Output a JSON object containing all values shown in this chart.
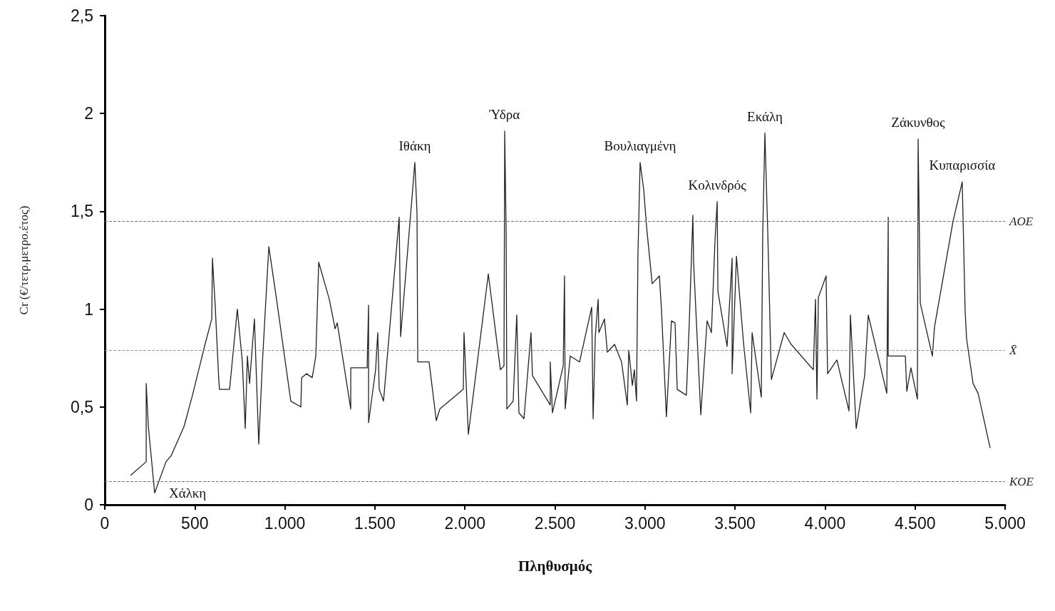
{
  "chart_data": {
    "type": "line",
    "xlabel": "Πληθυσμός",
    "ylabel": "Cr (€/τετρ.μετρο.έτος)",
    "x": [
      143,
      230,
      230,
      242,
      277,
      340,
      368,
      440,
      487,
      554,
      594,
      598,
      613,
      633,
      637,
      693,
      736,
      764,
      780,
      792,
      804,
      831,
      855,
      875,
      911,
      954,
      1033,
      1089,
      1093,
      1120,
      1152,
      1172,
      1188,
      1247,
      1279,
      1291,
      1366,
      1366,
      1457,
      1465,
      1465,
      1504,
      1516,
      1524,
      1548,
      1635,
      1643,
      1722,
      1734,
      1738,
      1801,
      1841,
      1861,
      1991,
      1995,
      2019,
      2130,
      2197,
      2217,
      2221,
      2229,
      2233,
      2268,
      2288,
      2300,
      2328,
      2367,
      2375,
      2474,
      2474,
      2486,
      2546,
      2553,
      2557,
      2585,
      2637,
      2704,
      2712,
      2724,
      2740,
      2744,
      2775,
      2791,
      2831,
      2870,
      2902,
      2910,
      2930,
      2941,
      2953,
      2961,
      2973,
      2993,
      3009,
      3040,
      3080,
      3092,
      3119,
      3147,
      3167,
      3179,
      3230,
      3246,
      3266,
      3270,
      3310,
      3345,
      3369,
      3389,
      3401,
      3405,
      3456,
      3484,
      3484,
      3508,
      3547,
      3587,
      3595,
      3646,
      3654,
      3666,
      3682,
      3702,
      3773,
      3812,
      3935,
      3947,
      3955,
      3963,
      4006,
      4014,
      4066,
      4133,
      4141,
      4173,
      4220,
      4240,
      4343,
      4351,
      4351,
      4446,
      4454,
      4477,
      4513,
      4517,
      4529,
      4596,
      4608,
      4711,
      4762,
      4778,
      4786,
      4822,
      4850,
      4917
    ],
    "series": [
      {
        "color": "#222222",
        "values": [
          0.15,
          0.22,
          0.62,
          0.4,
          0.06,
          0.22,
          0.25,
          0.4,
          0.56,
          0.81,
          0.95,
          1.26,
          1.02,
          0.64,
          0.59,
          0.59,
          1.0,
          0.73,
          0.39,
          0.76,
          0.62,
          0.95,
          0.31,
          0.72,
          1.32,
          1.05,
          0.53,
          0.5,
          0.65,
          0.67,
          0.65,
          0.76,
          1.24,
          1.05,
          0.9,
          0.93,
          0.49,
          0.7,
          0.7,
          1.02,
          0.42,
          0.69,
          0.88,
          0.59,
          0.53,
          1.47,
          0.86,
          1.75,
          1.49,
          0.73,
          0.73,
          0.43,
          0.49,
          0.59,
          0.88,
          0.36,
          1.18,
          0.69,
          0.71,
          1.91,
          1.39,
          0.49,
          0.53,
          0.97,
          0.47,
          0.44,
          0.88,
          0.66,
          0.51,
          0.73,
          0.47,
          0.71,
          1.17,
          0.49,
          0.76,
          0.73,
          1.01,
          0.44,
          0.86,
          1.05,
          0.88,
          0.95,
          0.78,
          0.82,
          0.73,
          0.51,
          0.79,
          0.61,
          0.69,
          0.53,
          1.28,
          1.75,
          1.61,
          1.42,
          1.13,
          1.17,
          0.99,
          0.45,
          0.94,
          0.93,
          0.59,
          0.56,
          0.93,
          1.48,
          1.24,
          0.46,
          0.94,
          0.88,
          1.35,
          1.55,
          1.09,
          0.81,
          1.26,
          0.67,
          1.27,
          0.83,
          0.47,
          0.88,
          0.55,
          1.39,
          1.9,
          1.39,
          0.64,
          0.88,
          0.82,
          0.69,
          1.05,
          0.54,
          1.06,
          1.17,
          0.67,
          0.74,
          0.48,
          0.97,
          0.39,
          0.66,
          0.97,
          0.57,
          1.47,
          0.76,
          0.76,
          0.58,
          0.7,
          0.54,
          1.87,
          1.03,
          0.76,
          0.91,
          1.45,
          1.65,
          0.99,
          0.85,
          0.62,
          0.57,
          0.29
        ]
      }
    ],
    "xlim": [
      0,
      5000
    ],
    "xticks": [
      0,
      500,
      {
        "value": 1000,
        "label": "1.000"
      },
      {
        "value": 1500,
        "label": "1.500"
      },
      {
        "value": 2000,
        "label": "2.000"
      },
      {
        "value": 2500,
        "label": "2.500"
      },
      {
        "value": 3000,
        "label": "3.000"
      },
      {
        "value": 3500,
        "label": "3.500"
      },
      {
        "value": 4000,
        "label": "4.000"
      },
      {
        "value": 4500,
        "label": "4.500"
      },
      {
        "value": 5000,
        "label": "5.000"
      }
    ],
    "ylim": [
      0,
      2.5
    ],
    "yticks": [
      0,
      {
        "value": 0.5,
        "label": "0,5"
      },
      1,
      {
        "value": 1.5,
        "label": "1,5"
      },
      2,
      {
        "value": 2.5,
        "label": "2,5"
      }
    ],
    "ref_lines": [
      {
        "axis": "y",
        "value": 1.45,
        "label": "AOE",
        "color": "#777777",
        "line_style": "dashed"
      },
      {
        "axis": "y",
        "value": 0.79,
        "label": "X̄",
        "color": "#999999",
        "line_style": "dashed"
      },
      {
        "axis": "y",
        "value": 0.12,
        "label": "KOE",
        "color": "#777777",
        "line_style": "dashed"
      }
    ],
    "annotations": [
      {
        "text": "Χάλκη",
        "x": 277,
        "y": 0.06
      },
      {
        "text": "Ιθάκη",
        "x": 1722,
        "y": 1.75
      },
      {
        "text": "Ύδρα",
        "x": 2221,
        "y": 1.91
      },
      {
        "text": "Βουλιαγμένη",
        "x": 2973,
        "y": 1.75
      },
      {
        "text": "Κολινδρός",
        "x": 3401,
        "y": 1.55
      },
      {
        "text": "Εκάλη",
        "x": 3666,
        "y": 1.9
      },
      {
        "text": "Ζάκυνθος",
        "x": 4517,
        "y": 1.87
      },
      {
        "text": "Κυπαρισσία",
        "x": 4762,
        "y": 1.65
      }
    ],
    "grid": false,
    "marker": "none",
    "line_style": "solid"
  }
}
